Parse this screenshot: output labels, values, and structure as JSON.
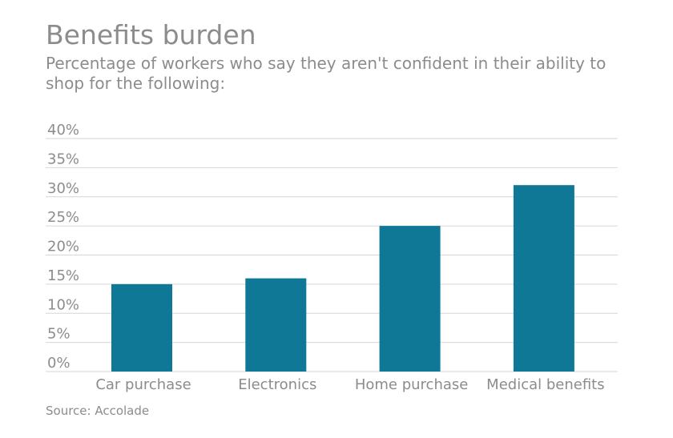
{
  "chart_data": {
    "type": "bar",
    "title": "Benefits burden",
    "subtitle": "Percentage of workers who say they aren't confident in their ability to shop for the following:",
    "categories": [
      "Car purchase",
      "Electronics",
      "Home purchase",
      "Medical benefits"
    ],
    "values": [
      15,
      16,
      25,
      32
    ],
    "yticks": [
      "0%",
      "5%",
      "10%",
      "15%",
      "20%",
      "25%",
      "30%",
      "35%",
      "40%"
    ],
    "ylim": [
      0,
      40
    ],
    "xlabel": "",
    "ylabel": "",
    "grid": true,
    "legend": "none",
    "bar_color": "#0e7896",
    "grid_color": "#d6d6d6",
    "source": "Source: Accolade"
  }
}
